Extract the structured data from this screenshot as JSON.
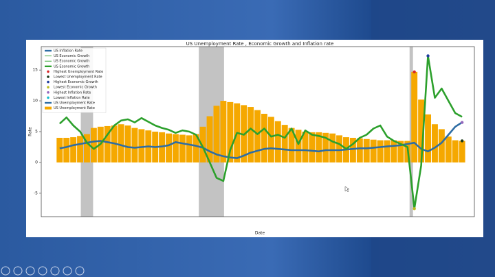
{
  "chart_data": {
    "type": "bar",
    "title": "US Unemployment Rate , Economic Growth and Inflation rate",
    "x_label": "Date",
    "y_label": "Rate",
    "categories": [
      null,
      null,
      null,
      null,
      null,
      null,
      null,
      null,
      null,
      null,
      null,
      null,
      null,
      null,
      null,
      null,
      null,
      null,
      null,
      null,
      null,
      null,
      null,
      null,
      null,
      null,
      null,
      null,
      null,
      null,
      null,
      null,
      null,
      null,
      null,
      null,
      null,
      null,
      null,
      null,
      null,
      null,
      null,
      null,
      null,
      null,
      null,
      null,
      null,
      null,
      null,
      null,
      null,
      null,
      null,
      null,
      null,
      null,
      null,
      null
    ],
    "xlim": [
      -2.7,
      60.8
    ],
    "ylim": [
      -8.8,
      18.8
    ],
    "yticks": [
      -5,
      0,
      5,
      10,
      15
    ],
    "grid": false,
    "shaded_spans": [
      [
        3.1,
        4.9
      ],
      [
        20.4,
        24.1
      ],
      [
        51.3,
        51.8
      ]
    ],
    "series": [
      {
        "name": "US Unemployment Rate",
        "type": "bar",
        "color": "#f5a800",
        "values": [
          4.0,
          4.0,
          4.1,
          4.3,
          4.6,
          5.6,
          5.8,
          5.9,
          6.0,
          6.2,
          6.0,
          5.6,
          5.4,
          5.2,
          5.0,
          4.9,
          4.7,
          4.6,
          4.5,
          4.4,
          4.6,
          5.8,
          7.5,
          9.2,
          10.0,
          9.8,
          9.6,
          9.3,
          9.0,
          8.5,
          7.9,
          7.4,
          6.7,
          6.1,
          5.6,
          5.3,
          5.0,
          4.9,
          4.9,
          4.8,
          4.7,
          4.4,
          4.1,
          4.0,
          3.9,
          3.8,
          3.7,
          3.6,
          3.6,
          3.6,
          3.5,
          3.5,
          14.7,
          10.2,
          7.8,
          6.2,
          5.4,
          4.2,
          3.6,
          3.5
        ]
      },
      {
        "name": "US Inflation Rate",
        "type": "line",
        "color": "#2e6da4",
        "values": [
          2.3,
          2.5,
          2.8,
          3.0,
          3.2,
          3.4,
          3.5,
          3.3,
          3.1,
          2.8,
          2.5,
          2.4,
          2.5,
          2.6,
          2.5,
          2.6,
          2.8,
          3.3,
          3.1,
          2.9,
          2.7,
          2.4,
          1.8,
          1.3,
          1.0,
          0.8,
          0.7,
          1.1,
          1.6,
          1.9,
          2.2,
          2.3,
          2.2,
          2.1,
          2.0,
          2.0,
          2.0,
          1.9,
          1.8,
          2.0,
          2.0,
          2.0,
          2.1,
          2.2,
          2.3,
          2.3,
          2.4,
          2.5,
          2.6,
          2.7,
          2.8,
          3.0,
          3.2,
          2.2,
          1.8,
          2.4,
          3.2,
          4.5,
          5.8,
          6.5
        ]
      },
      {
        "name": "US Economic Growth",
        "type": "line",
        "color": "#2ca02c",
        "values": [
          6.3,
          7.3,
          6.0,
          5.0,
          3.2,
          2.2,
          3.0,
          4.5,
          6.0,
          6.8,
          7.0,
          6.5,
          7.2,
          6.6,
          6.0,
          5.6,
          5.3,
          4.8,
          5.2,
          5.0,
          4.5,
          2.5,
          0,
          -2.5,
          -3.0,
          2.0,
          4.8,
          4.5,
          5.5,
          4.6,
          5.5,
          4.2,
          4.5,
          4.0,
          5.5,
          3.0,
          5.2,
          4.5,
          4.3,
          4.0,
          3.4,
          3.0,
          2.2,
          3.0,
          4.0,
          4.5,
          5.5,
          6.0,
          4.2,
          3.5,
          3.0,
          2.5,
          -7.5,
          -0.5,
          17.3,
          10.5,
          12.0,
          10.0,
          8.0,
          7.4
        ]
      }
    ],
    "markers": [
      {
        "color": "#d62728",
        "series": 0,
        "index": 52
      },
      {
        "color": "#1a3a1a",
        "series": 0,
        "index": 59
      },
      {
        "color": "#1f3f9f",
        "series": 2,
        "index": 54
      },
      {
        "color": "#bcbd22",
        "series": 2,
        "index": 52
      },
      {
        "color": "#9467bd",
        "series": 1,
        "index": 59
      }
    ],
    "legend": [
      {
        "label": "US Inflation Rate",
        "color": "#2e6da4",
        "kind": "thick"
      },
      {
        "label": "US Economic Growth",
        "color": "#2ca02c",
        "kind": "thin"
      },
      {
        "label": "US Economic Growth",
        "color": "#2ca02c",
        "kind": "thin"
      },
      {
        "label": "US Economic Growth",
        "color": "#2ca02c",
        "kind": "thick"
      },
      {
        "label": "Highest Unemployment Rate",
        "color": "#d62728",
        "kind": "dot"
      },
      {
        "label": "Lowest Unemployment Rate",
        "color": "#1a3a1a",
        "kind": "dot"
      },
      {
        "label": "Highest Economic Growth",
        "color": "#1f3f9f",
        "kind": "dot"
      },
      {
        "label": "Lowest Economic Growth",
        "color": "#bcbd22",
        "kind": "dot"
      },
      {
        "label": "Highest Inflation Rate",
        "color": "#9467bd",
        "kind": "dot"
      },
      {
        "label": "Lowest Inflation Rate",
        "color": "#17becf",
        "kind": "dot"
      },
      {
        "label": "US Unemployment Rate",
        "color": "#2e6da4",
        "kind": "thick"
      },
      {
        "label": "US Unemployment Rate",
        "color": "#f5a800",
        "kind": "box"
      }
    ]
  }
}
